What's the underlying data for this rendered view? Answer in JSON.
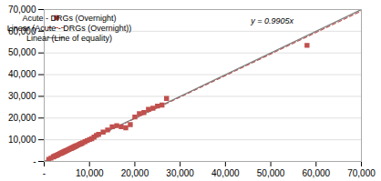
{
  "chart_data": {
    "type": "scatter",
    "series": [
      {
        "name": "Acute - DRGs (Overnight)",
        "type": "scatter",
        "marker": "square",
        "color": "#c0504d",
        "x": [
          1000,
          1500,
          2000,
          2200,
          2500,
          2800,
          3000,
          3200,
          3500,
          3600,
          3800,
          4000,
          4200,
          4400,
          4600,
          4800,
          5000,
          5200,
          5400,
          5600,
          5800,
          6000,
          6200,
          6400,
          6600,
          6800,
          7000,
          7200,
          7500,
          7800,
          8000,
          8200,
          8500,
          9000,
          9500,
          10000,
          10500,
          11000,
          11500,
          12000,
          13000,
          14000,
          15000,
          16000,
          17000,
          18000,
          19000,
          20000,
          21000,
          22000,
          23000,
          24000,
          25000,
          26000,
          27000,
          58000
        ],
        "values": [
          1000,
          1500,
          2100,
          2300,
          2600,
          2800,
          3100,
          3300,
          3600,
          3700,
          3900,
          4100,
          4300,
          4500,
          4700,
          4900,
          5100,
          5300,
          5500,
          5700,
          5900,
          6100,
          6300,
          6500,
          6700,
          6900,
          7100,
          7300,
          7600,
          7900,
          8100,
          8300,
          8600,
          9100,
          9600,
          10100,
          10500,
          11200,
          12000,
          12500,
          13500,
          14500,
          16000,
          16500,
          16000,
          15500,
          17000,
          20500,
          22000,
          22500,
          24000,
          24500,
          25500,
          26000,
          29000,
          53500
        ]
      },
      {
        "name": "Linear (Acute - DRGs (Overnight))",
        "type": "line",
        "line_style": "dashed",
        "color": "#c0504d",
        "x": [
          0,
          70000
        ],
        "values": [
          0,
          69335
        ]
      },
      {
        "name": "Linear (Line of equality)",
        "type": "line",
        "line_style": "solid",
        "color": "#7f7f7f",
        "x": [
          0,
          70000
        ],
        "values": [
          0,
          70000
        ]
      }
    ],
    "annotations": [
      "y = 0.9905x"
    ],
    "xlim": [
      0,
      70000
    ],
    "ylim": [
      0,
      70000
    ],
    "xticks": [
      {
        "value": 0,
        "label": "-"
      },
      {
        "value": 10000,
        "label": "10,000"
      },
      {
        "value": 20000,
        "label": "20,000"
      },
      {
        "value": 30000,
        "label": "30,000"
      },
      {
        "value": 40000,
        "label": "40,000"
      },
      {
        "value": 50000,
        "label": "50,000"
      },
      {
        "value": 60000,
        "label": "60,000"
      },
      {
        "value": 70000,
        "label": "70,000"
      }
    ],
    "yticks": [
      {
        "value": 0,
        "label": "-"
      },
      {
        "value": 10000,
        "label": "10,000"
      },
      {
        "value": 20000,
        "label": "20,000"
      },
      {
        "value": 30000,
        "label": "30,000"
      },
      {
        "value": 40000,
        "label": "40,000"
      },
      {
        "value": 50000,
        "label": "50,000"
      },
      {
        "value": 60000,
        "label": "60,000"
      },
      {
        "value": 70000,
        "label": "70,000"
      }
    ],
    "grid": "y",
    "legend": "upper left"
  }
}
